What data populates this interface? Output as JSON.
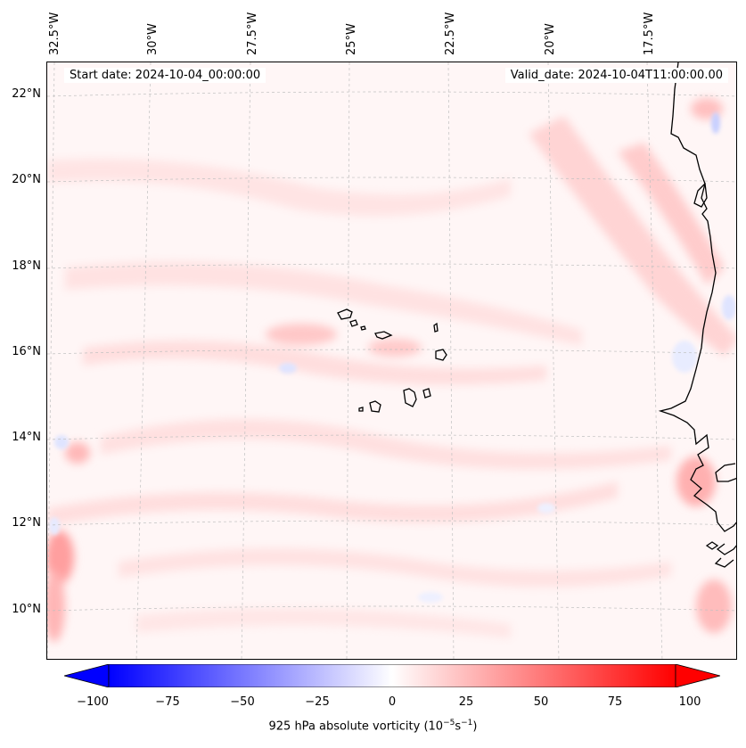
{
  "map": {
    "start_date": "Start date: 2024-10-04_00:00:00",
    "valid_date": "Valid_date: 2024-10-04T11:00:00.00",
    "lon_labels": [
      "32.5°W",
      "30°W",
      "27.5°W",
      "25°W",
      "22.5°W",
      "20°W",
      "17.5°W"
    ],
    "lat_labels": [
      "22°N",
      "20°N",
      "18°N",
      "16°N",
      "14°N",
      "12°N",
      "10°N"
    ],
    "variable": "925 hPa absolute vorticity",
    "units_prefix": "(10",
    "units_exp1": "−5",
    "units_mid": "s",
    "units_exp2": "−1",
    "units_suffix": ")"
  },
  "colorbar": {
    "ticks": [
      "−100",
      "−75",
      "−50",
      "−25",
      "0",
      "25",
      "50",
      "75",
      "100"
    ],
    "min": -100,
    "max": 100,
    "low_color": "#0000ff",
    "mid_color": "#ffffff",
    "high_color": "#ff0000"
  },
  "features": [
    "coastline-west-africa",
    "cape-verde-islands",
    "gridlines"
  ]
}
